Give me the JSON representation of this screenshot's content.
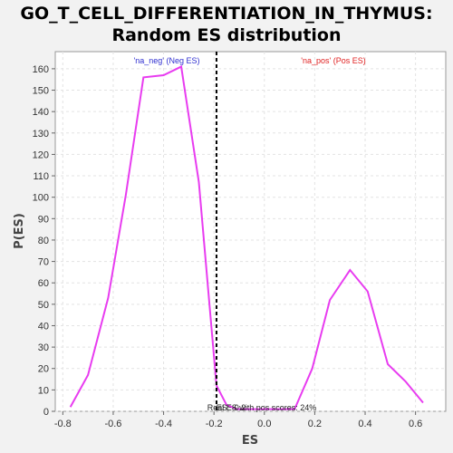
{
  "chart_data": {
    "type": "line",
    "title": "GO_T_CELL_DIFFERENTIATION_IN_THYMUS:",
    "subtitle": "Random ES distribution",
    "xlabel": "ES",
    "ylabel": "P(ES)",
    "xlim": [
      -0.83,
      0.72
    ],
    "ylim": [
      0,
      168
    ],
    "x_ticks": [
      "-0.8",
      "-0.6",
      "-0.4",
      "-0.2",
      "0.0",
      "0.2",
      "0.4",
      "0.6"
    ],
    "y_ticks": [
      "0",
      "10",
      "20",
      "30",
      "40",
      "50",
      "60",
      "70",
      "80",
      "90",
      "100",
      "110",
      "120",
      "130",
      "140",
      "150",
      "160"
    ],
    "grid": true,
    "series": [
      {
        "color": "#e83cf0",
        "x": [
          -0.77,
          -0.7,
          -0.62,
          -0.55,
          -0.48,
          -0.4,
          -0.33,
          -0.26,
          -0.19,
          -0.15,
          -0.11,
          -0.04,
          0.04,
          0.12,
          0.19,
          0.26,
          0.34,
          0.41,
          0.49,
          0.56,
          0.63
        ],
        "y": [
          2,
          17,
          53,
          101,
          156,
          157,
          161,
          107,
          12,
          3,
          1,
          1,
          1,
          1,
          20,
          52,
          66,
          56,
          22,
          14,
          4
        ]
      }
    ],
    "vline": {
      "x": -0.19,
      "label": "ES: -0.2"
    },
    "annotations": {
      "neg": {
        "text": "'na_neg' (Neg ES)",
        "color": "#2f2fd0"
      },
      "pos": {
        "text": "'na_pos' (Pos ES)",
        "color": "#e02020"
      },
      "footer": {
        "text": "Real ES with pos scores: 24%"
      }
    }
  }
}
